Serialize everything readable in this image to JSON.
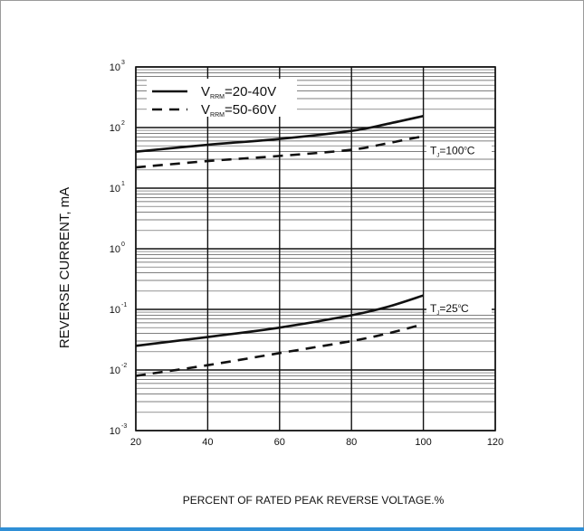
{
  "chart_data": {
    "type": "line",
    "xlabel": "PERCENT OF RATED PEAK REVERSE VOLTAGE.%",
    "ylabel": "REVERSE CURRENT, mA",
    "xlim": [
      20,
      120
    ],
    "x_ticks": [
      "20",
      "40",
      "60",
      "80",
      "100",
      "120"
    ],
    "y_scale": "log",
    "ylim": [
      0.001,
      1000
    ],
    "y_ticks": [
      {
        "base": "10",
        "exp": "-3"
      },
      {
        "base": "10",
        "exp": "-2"
      },
      {
        "base": "10",
        "exp": "-1"
      },
      {
        "base": "10",
        "exp": "0"
      },
      {
        "base": "10",
        "exp": "1"
      },
      {
        "base": "10",
        "exp": "2"
      },
      {
        "base": "10",
        "exp": "3"
      }
    ],
    "grid": true,
    "legend": {
      "placement": "top-left",
      "entries": [
        {
          "prefix": "V",
          "sub": "RRM",
          "suffix": "=20-40V",
          "style": "solid"
        },
        {
          "prefix": "V",
          "sub": "RRM",
          "suffix": "=50-60V",
          "style": "dashed"
        }
      ]
    },
    "annotations": [
      {
        "prefix": "T",
        "sub": "J",
        "suffix": "=100",
        "deg": "o",
        "unit": "C"
      },
      {
        "prefix": "T",
        "sub": "J",
        "suffix": "=25",
        "deg": "o",
        "unit": "C"
      }
    ],
    "series": [
      {
        "group": "TJ=100C",
        "style": "solid",
        "x": [
          20,
          40,
          60,
          80,
          90,
          100
        ],
        "y": [
          40,
          52,
          65,
          88,
          115,
          155
        ]
      },
      {
        "group": "TJ=100C",
        "style": "dashed",
        "x": [
          20,
          40,
          60,
          80,
          90,
          100
        ],
        "y": [
          22,
          28,
          34,
          43,
          55,
          72
        ]
      },
      {
        "group": "TJ=25C",
        "style": "solid",
        "x": [
          20,
          40,
          60,
          80,
          90,
          100
        ],
        "y": [
          0.025,
          0.035,
          0.05,
          0.08,
          0.11,
          0.17
        ]
      },
      {
        "group": "TJ=25C",
        "style": "dashed",
        "x": [
          20,
          40,
          60,
          80,
          90,
          100
        ],
        "y": [
          0.008,
          0.012,
          0.019,
          0.03,
          0.04,
          0.057
        ]
      }
    ]
  }
}
